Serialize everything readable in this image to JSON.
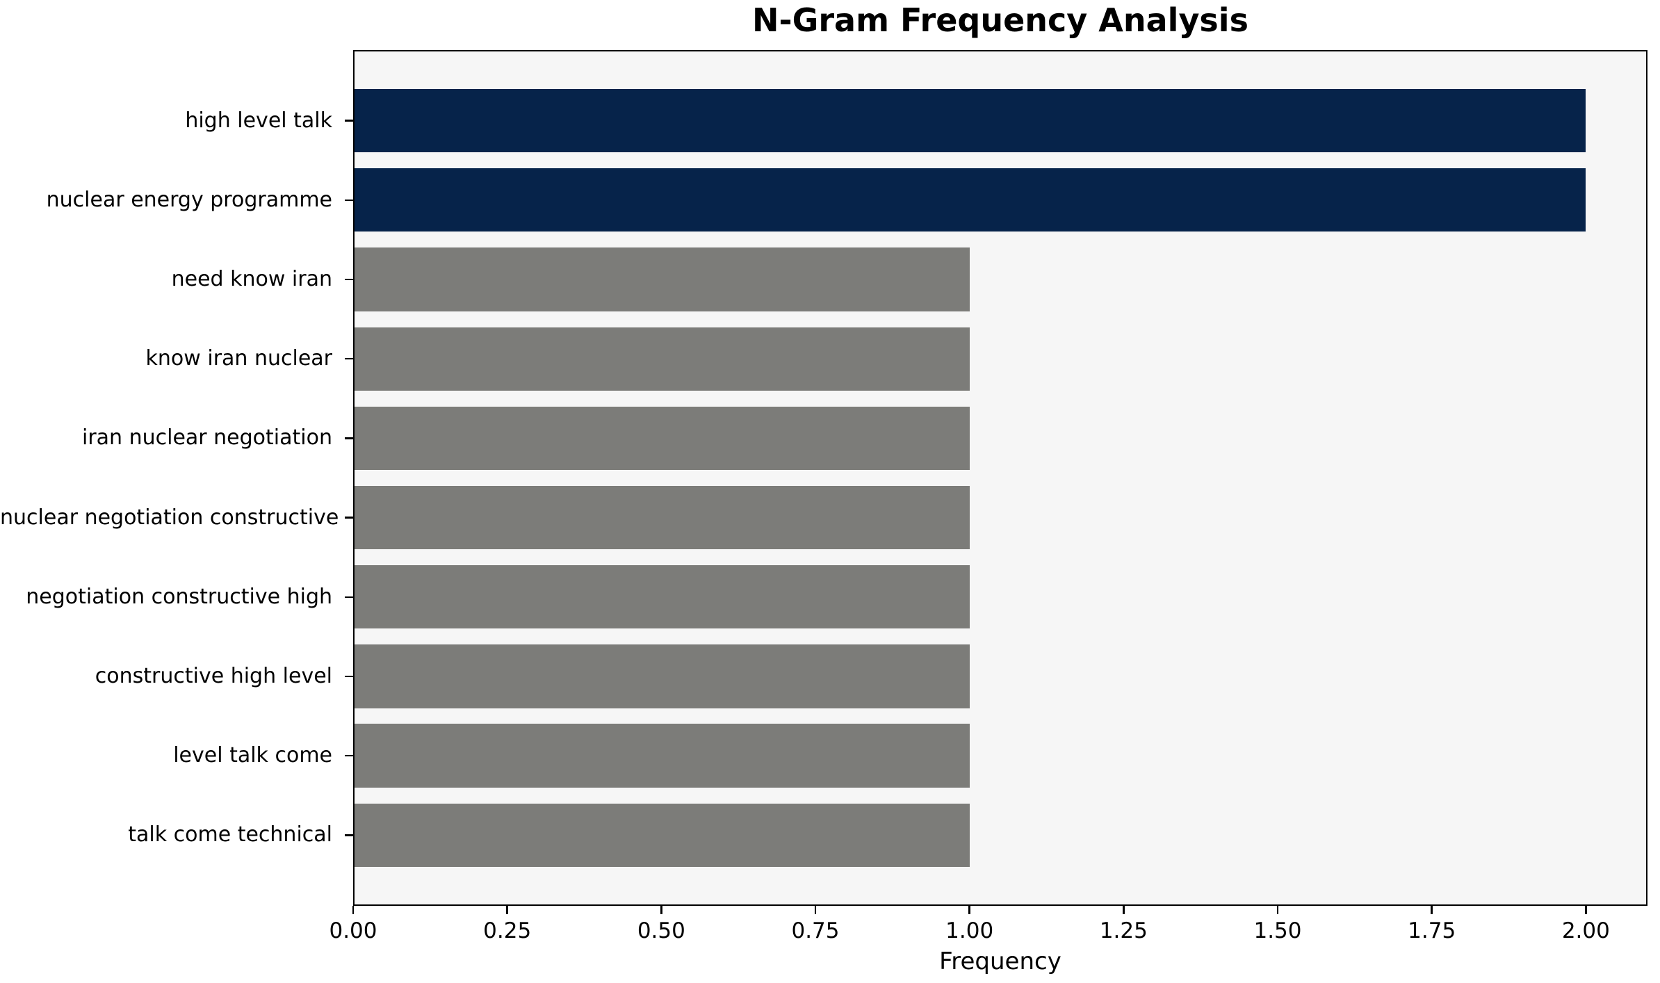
{
  "chart_data": {
    "type": "bar",
    "orientation": "horizontal",
    "title": "N-Gram Frequency Analysis",
    "xlabel": "Frequency",
    "ylabel": "",
    "categories": [
      "high level talk",
      "nuclear energy programme",
      "need know iran",
      "know iran nuclear",
      "iran nuclear negotiation",
      "nuclear negotiation constructive",
      "negotiation constructive high",
      "constructive high level",
      "level talk come",
      "talk come technical"
    ],
    "values": [
      2,
      2,
      1,
      1,
      1,
      1,
      1,
      1,
      1,
      1
    ],
    "bar_colors": [
      "#06234a",
      "#06234a",
      "#7c7c79",
      "#7c7c79",
      "#7c7c79",
      "#7c7c79",
      "#7c7c79",
      "#7c7c79",
      "#7c7c79",
      "#7c7c79"
    ],
    "xlim": [
      0,
      2.1
    ],
    "xticks": [
      0,
      0.25,
      0.5,
      0.75,
      1.0,
      1.25,
      1.5,
      1.75,
      2.0
    ],
    "xtick_labels": [
      "0.00",
      "0.25",
      "0.50",
      "0.75",
      "1.00",
      "1.25",
      "1.50",
      "1.75",
      "2.00"
    ],
    "grid": false,
    "legend": "none",
    "colors": {
      "highlight": "#06234a",
      "muted": "#7c7c79",
      "plot_bg": "#f6f6f6",
      "figure_bg": "#ffffff",
      "spine": "#000000",
      "text": "#000000"
    }
  }
}
